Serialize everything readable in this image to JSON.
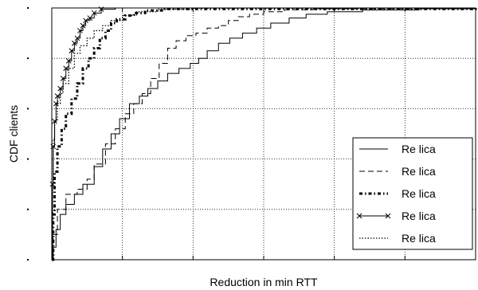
{
  "chart_data": {
    "type": "line",
    "title": "",
    "xlabel": "Reduction in min RTT",
    "ylabel": "CDF  clients",
    "xlim": [
      0,
      300
    ],
    "ylim": [
      0,
      1
    ],
    "x_grid": [
      50,
      100,
      150,
      200,
      250
    ],
    "y_grid": [
      0.2,
      0.4,
      0.6,
      0.8
    ],
    "grid": true,
    "legend_position": "bottom-right",
    "series": [
      {
        "name": "Re lica",
        "style": "solid",
        "points": [
          [
            0,
            0
          ],
          [
            1,
            0.05
          ],
          [
            3,
            0.12
          ],
          [
            6,
            0.18
          ],
          [
            10,
            0.22
          ],
          [
            16,
            0.26
          ],
          [
            22,
            0.3
          ],
          [
            30,
            0.37
          ],
          [
            36,
            0.44
          ],
          [
            42,
            0.5
          ],
          [
            48,
            0.56
          ],
          [
            55,
            0.62
          ],
          [
            62,
            0.65
          ],
          [
            68,
            0.68
          ],
          [
            75,
            0.71
          ],
          [
            82,
            0.74
          ],
          [
            90,
            0.76
          ],
          [
            98,
            0.78
          ],
          [
            104,
            0.8
          ],
          [
            110,
            0.83
          ],
          [
            118,
            0.86
          ],
          [
            126,
            0.88
          ],
          [
            135,
            0.9
          ],
          [
            145,
            0.92
          ],
          [
            155,
            0.94
          ],
          [
            168,
            0.96
          ],
          [
            180,
            0.975
          ],
          [
            195,
            0.985
          ],
          [
            220,
            0.992
          ],
          [
            260,
            0.997
          ],
          [
            300,
            1.0
          ]
        ]
      },
      {
        "name": "Re lica",
        "style": "dashed",
        "points": [
          [
            0,
            0
          ],
          [
            1,
            0.1
          ],
          [
            4,
            0.2
          ],
          [
            10,
            0.26
          ],
          [
            18,
            0.28
          ],
          [
            25,
            0.32
          ],
          [
            30,
            0.38
          ],
          [
            38,
            0.46
          ],
          [
            45,
            0.52
          ],
          [
            52,
            0.58
          ],
          [
            58,
            0.62
          ],
          [
            64,
            0.66
          ],
          [
            70,
            0.72
          ],
          [
            76,
            0.78
          ],
          [
            82,
            0.84
          ],
          [
            88,
            0.87
          ],
          [
            95,
            0.89
          ],
          [
            102,
            0.9
          ],
          [
            110,
            0.92
          ],
          [
            118,
            0.93
          ],
          [
            125,
            0.95
          ],
          [
            132,
            0.965
          ],
          [
            140,
            0.975
          ],
          [
            150,
            0.985
          ],
          [
            165,
            0.993
          ],
          [
            185,
            0.997
          ],
          [
            300,
            1.0
          ]
        ]
      },
      {
        "name": "Re lica",
        "style": "dashdot-thick",
        "points": [
          [
            0,
            0
          ],
          [
            1,
            0.18
          ],
          [
            2,
            0.35
          ],
          [
            4,
            0.45
          ],
          [
            7,
            0.52
          ],
          [
            10,
            0.58
          ],
          [
            14,
            0.64
          ],
          [
            18,
            0.7
          ],
          [
            22,
            0.76
          ],
          [
            26,
            0.8
          ],
          [
            30,
            0.84
          ],
          [
            34,
            0.88
          ],
          [
            38,
            0.91
          ],
          [
            42,
            0.94
          ],
          [
            46,
            0.955
          ],
          [
            52,
            0.97
          ],
          [
            58,
            0.98
          ],
          [
            66,
            0.99
          ],
          [
            80,
            0.996
          ],
          [
            300,
            1.0
          ]
        ]
      },
      {
        "name": "Re lica",
        "style": "solid-x",
        "points": [
          [
            0,
            0
          ],
          [
            0.5,
            0.3
          ],
          [
            1,
            0.45
          ],
          [
            2,
            0.55
          ],
          [
            3,
            0.62
          ],
          [
            4,
            0.65
          ],
          [
            6,
            0.68
          ],
          [
            8,
            0.72
          ],
          [
            10,
            0.76
          ],
          [
            12,
            0.79
          ],
          [
            14,
            0.83
          ],
          [
            16,
            0.86
          ],
          [
            18,
            0.88
          ],
          [
            20,
            0.91
          ],
          [
            22,
            0.93
          ],
          [
            24,
            0.95
          ],
          [
            27,
            0.96
          ],
          [
            30,
            0.98
          ],
          [
            35,
            0.995
          ],
          [
            45,
            1.0
          ],
          [
            300,
            1.0
          ]
        ]
      },
      {
        "name": "Re lica",
        "style": "dotted",
        "points": [
          [
            0,
            0
          ],
          [
            0.5,
            0.3
          ],
          [
            1,
            0.48
          ],
          [
            2,
            0.55
          ],
          [
            4,
            0.62
          ],
          [
            6,
            0.66
          ],
          [
            8,
            0.7
          ],
          [
            12,
            0.76
          ],
          [
            16,
            0.82
          ],
          [
            20,
            0.85
          ],
          [
            25,
            0.88
          ],
          [
            30,
            0.91
          ],
          [
            36,
            0.93
          ],
          [
            42,
            0.95
          ],
          [
            50,
            0.97
          ],
          [
            60,
            0.985
          ],
          [
            75,
            0.995
          ],
          [
            100,
            0.999
          ],
          [
            300,
            1.0
          ]
        ]
      }
    ]
  },
  "colors": {
    "line": "#000000",
    "grid": "#000000",
    "background": "#ffffff"
  }
}
